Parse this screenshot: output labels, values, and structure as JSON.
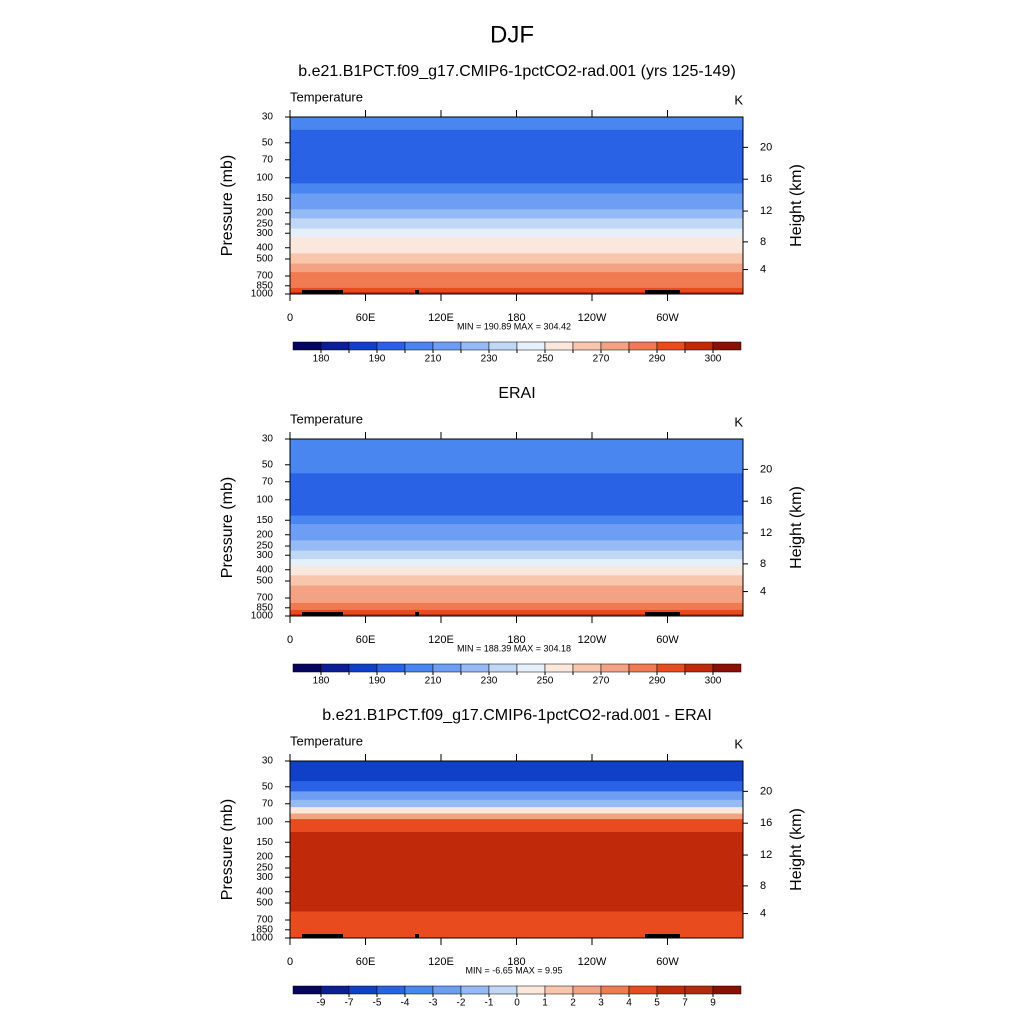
{
  "title": "DJF",
  "chart_data": [
    {
      "type": "contour",
      "title": "b.e21.B1PCT.f09_g17.CMIP6-1pctCO2-rad.001 (yrs 125-149)",
      "left_label": "Temperature",
      "right_label": "K",
      "ylabel": "Pressure (mb)",
      "y2label": "Height (km)",
      "annotation": "MIN = 190.89  MAX = 304.42",
      "pressure": [
        30,
        50,
        70,
        100,
        125,
        150,
        175,
        200,
        250,
        300,
        350,
        400,
        500,
        600,
        700,
        850,
        925,
        1000
      ],
      "values": [
        205,
        197,
        196,
        198,
        205,
        212,
        218,
        222,
        232,
        242,
        250,
        257,
        266,
        275,
        281,
        288,
        292,
        296
      ],
      "log_y": true,
      "ylim": [
        1000,
        30
      ],
      "yticks": [
        30,
        50,
        70,
        100,
        150,
        200,
        250,
        300,
        400,
        500,
        700,
        850,
        1000
      ],
      "y2ticks": [
        4,
        8,
        12,
        16,
        20
      ],
      "xlim": [
        0,
        360
      ],
      "xticks": [
        0,
        {
          "value": 60,
          "label": "60E"
        },
        {
          "value": 120,
          "label": "120E"
        },
        180,
        {
          "value": 240,
          "label": "120W"
        },
        {
          "value": 300,
          "label": "60W"
        }
      ],
      "levels": [
        180,
        185,
        190,
        200,
        210,
        220,
        230,
        240,
        250,
        260,
        270,
        280,
        290,
        295,
        300
      ],
      "colorbar_label_stride": 2,
      "colors": [
        "#06065e",
        "#0a1e96",
        "#1040c8",
        "#2a62e6",
        "#4a86f0",
        "#6e9ef4",
        "#96baf5",
        "#c0d8f6",
        "#e6f0fb",
        "#fbe8dc",
        "#f7c6ad",
        "#f4a284",
        "#f07a52",
        "#e84c1e",
        "#c02a0a",
        "#8a0f05"
      ]
    },
    {
      "type": "contour",
      "title": "ERAI",
      "left_label": "Temperature",
      "right_label": "K",
      "ylabel": "Pressure (mb)",
      "y2label": "Height (km)",
      "annotation": "MIN = 188.39  MAX = 304.18",
      "pressure": [
        30,
        50,
        70,
        100,
        125,
        150,
        175,
        200,
        250,
        300,
        350,
        400,
        500,
        600,
        700,
        850,
        925,
        1000
      ],
      "values": [
        207,
        202,
        196,
        194,
        199,
        206,
        212,
        216,
        225,
        236,
        245,
        252,
        263,
        272,
        278,
        285,
        290,
        295
      ],
      "log_y": true,
      "ylim": [
        1000,
        30
      ],
      "yticks": [
        30,
        50,
        70,
        100,
        150,
        200,
        250,
        300,
        400,
        500,
        700,
        850,
        1000
      ],
      "y2ticks": [
        4,
        8,
        12,
        16,
        20
      ],
      "xlim": [
        0,
        360
      ],
      "xticks": [
        0,
        {
          "value": 60,
          "label": "60E"
        },
        {
          "value": 120,
          "label": "120E"
        },
        180,
        {
          "value": 240,
          "label": "120W"
        },
        {
          "value": 300,
          "label": "60W"
        }
      ],
      "levels": [
        180,
        185,
        190,
        200,
        210,
        220,
        230,
        240,
        250,
        260,
        270,
        280,
        290,
        295,
        300
      ],
      "colorbar_label_stride": 2,
      "colors": [
        "#06065e",
        "#0a1e96",
        "#1040c8",
        "#2a62e6",
        "#4a86f0",
        "#6e9ef4",
        "#96baf5",
        "#c0d8f6",
        "#e6f0fb",
        "#fbe8dc",
        "#f7c6ad",
        "#f4a284",
        "#f07a52",
        "#e84c1e",
        "#c02a0a",
        "#8a0f05"
      ]
    },
    {
      "type": "contour",
      "title": "b.e21.B1PCT.f09_g17.CMIP6-1pctCO2-rad.001 - ERAI",
      "left_label": "Temperature",
      "right_label": "K",
      "ylabel": "Pressure (mb)",
      "y2label": "Height (km)",
      "annotation": "MIN =  -6.65  MAX =   9.95",
      "pressure": [
        30,
        40,
        50,
        60,
        70,
        80,
        90,
        100,
        150,
        200,
        250,
        300,
        400,
        500,
        700,
        850,
        1000
      ],
      "values": [
        -6,
        -5.5,
        -4.5,
        -3,
        -1.5,
        0.5,
        2.5,
        4,
        6,
        6.2,
        6.5,
        6.5,
        6,
        5.5,
        4.5,
        4.5,
        4.2
      ],
      "log_y": true,
      "ylim": [
        1000,
        30
      ],
      "yticks": [
        30,
        50,
        70,
        100,
        150,
        200,
        250,
        300,
        400,
        500,
        700,
        850,
        1000
      ],
      "y2ticks": [
        4,
        8,
        12,
        16,
        20
      ],
      "xlim": [
        0,
        360
      ],
      "xticks": [
        0,
        {
          "value": 60,
          "label": "60E"
        },
        {
          "value": 120,
          "label": "120E"
        },
        180,
        {
          "value": 240,
          "label": "120W"
        },
        {
          "value": 300,
          "label": "60W"
        }
      ],
      "levels": [
        -9,
        -7,
        -5,
        -4,
        -3,
        -2,
        -1,
        0,
        1,
        2,
        3,
        4,
        5,
        7,
        9
      ],
      "colorbar_label_stride": 1,
      "colors": [
        "#06065e",
        "#0a1e96",
        "#1040c8",
        "#2a62e6",
        "#4a86f0",
        "#6e9ef4",
        "#96baf5",
        "#c0d8f6",
        "#fbe8dc",
        "#f7c6ad",
        "#f4a284",
        "#f07a52",
        "#e84c1e",
        "#c02a0a",
        "#b52a0a",
        "#8a0f05"
      ]
    }
  ]
}
